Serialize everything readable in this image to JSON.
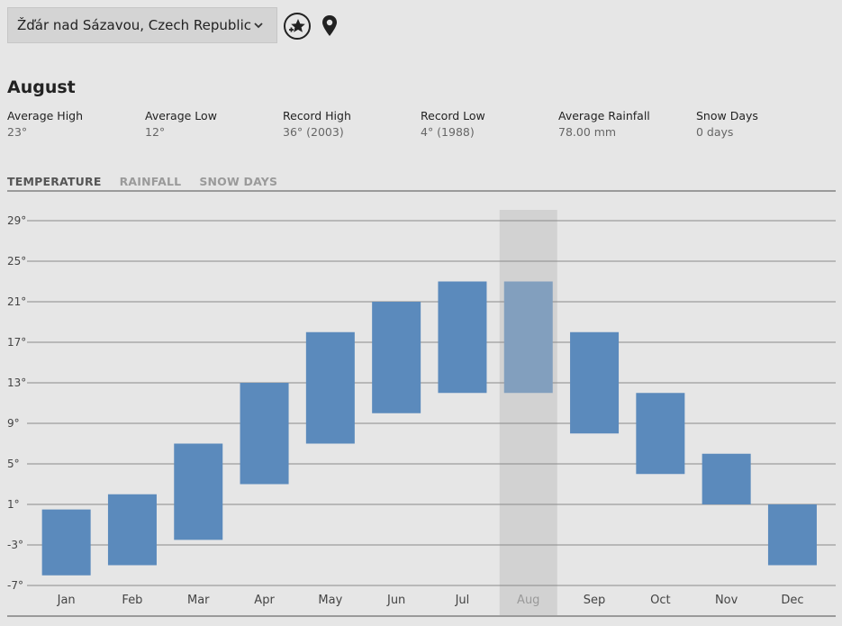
{
  "location": {
    "selected": "Žďár nad Sázavou, Czech Republic"
  },
  "icons": {
    "chevron": "chevron-down-icon",
    "favorites": "star-add-icon",
    "current_location": "map-pin-icon"
  },
  "summary": {
    "month": "August",
    "stats": [
      {
        "label": "Average High",
        "value": "23°"
      },
      {
        "label": "Average Low",
        "value": "12°"
      },
      {
        "label": "Record High",
        "value": "36° (2003)"
      },
      {
        "label": "Record Low",
        "value": "4° (1988)"
      },
      {
        "label": "Average Rainfall",
        "value": "78.00 mm"
      },
      {
        "label": "Snow Days",
        "value": "0 days"
      }
    ]
  },
  "tabs": [
    {
      "label": "TEMPERATURE",
      "active": true
    },
    {
      "label": "RAINFALL",
      "active": false
    },
    {
      "label": "SNOW DAYS",
      "active": false
    }
  ],
  "colors": {
    "bar": "#5b8abc",
    "bar_selected": "#829fbe",
    "highlight": "#d2d2d2",
    "gridline": "#8a8a8a"
  },
  "chart_data": {
    "type": "bar",
    "subtype": "floating-range",
    "categories": [
      "Jan",
      "Feb",
      "Mar",
      "Apr",
      "May",
      "Jun",
      "Jul",
      "Aug",
      "Sep",
      "Oct",
      "Nov",
      "Dec"
    ],
    "series": [
      {
        "name": "Average Low",
        "values": [
          -6,
          -5,
          -2.5,
          3,
          7,
          10,
          12,
          12,
          8,
          4,
          1,
          -5
        ]
      },
      {
        "name": "Average High",
        "values": [
          0.5,
          2,
          7,
          13,
          18,
          21,
          23,
          23,
          18,
          12,
          6,
          1
        ]
      }
    ],
    "selected_category": "Aug",
    "yticks": [
      29,
      25,
      21,
      17,
      13,
      9,
      5,
      1,
      -3,
      -7
    ],
    "ytick_labels": [
      "29°",
      "25°",
      "21°",
      "17°",
      "13°",
      "9°",
      "5°",
      "1°",
      "-3°",
      "-7°"
    ],
    "ylim": [
      -7,
      29
    ],
    "grid": true
  }
}
